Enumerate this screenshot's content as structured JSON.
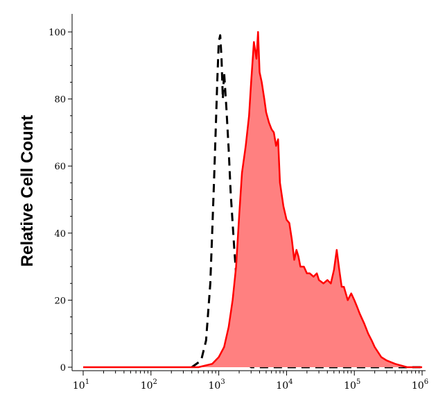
{
  "chart_data": {
    "type": "area",
    "title": "",
    "xlabel": "",
    "ylabel": "Relative Cell Count",
    "x_scale": "log",
    "xlim": [
      10,
      1000000
    ],
    "ylim": [
      0,
      100
    ],
    "y_ticks": [
      0,
      20,
      40,
      60,
      80,
      100
    ],
    "x_tick_labels": [
      {
        "base": "10",
        "exp": "1"
      },
      {
        "base": "10",
        "exp": "2"
      },
      {
        "base": "10",
        "exp": "3"
      },
      {
        "base": "10",
        "exp": "4"
      },
      {
        "base": "10",
        "exp": "5"
      },
      {
        "base": "10",
        "exp": "6"
      }
    ],
    "grid": false,
    "legend": "none",
    "series": [
      {
        "style": "dashed",
        "color": "#000000",
        "x": [
          400,
          550,
          650,
          750,
          800,
          850,
          900,
          950,
          1000,
          1050,
          1100,
          1150,
          1200,
          1300,
          1400,
          1500,
          1600,
          1700,
          1800,
          1900,
          2000,
          2100,
          2200,
          2400,
          2600,
          3000,
          3500,
          1000000
        ],
        "values": [
          0,
          2,
          8,
          25,
          40,
          55,
          70,
          85,
          97,
          99,
          92,
          80,
          88,
          77,
          65,
          52,
          43,
          35,
          28,
          21,
          14,
          10,
          6,
          2,
          1,
          0,
          0,
          0
        ]
      },
      {
        "style": "filled",
        "color": "#ff0000",
        "fill": "#ff8080",
        "x": [
          10,
          100,
          500,
          800,
          1000,
          1200,
          1400,
          1600,
          1800,
          2000,
          2200,
          2500,
          2800,
          3000,
          3300,
          3600,
          3800,
          4000,
          4300,
          4700,
          5000,
          5500,
          6000,
          6500,
          7000,
          7500,
          8000,
          9000,
          10000,
          11000,
          12000,
          13000,
          14000,
          15000,
          16000,
          18000,
          20000,
          22000,
          25000,
          28000,
          30000,
          35000,
          40000,
          45000,
          50000,
          55000,
          60000,
          65000,
          70000,
          80000,
          90000,
          100000,
          110000,
          120000,
          140000,
          160000,
          180000,
          200000,
          250000,
          300000,
          400000,
          600000,
          1000000
        ],
        "values": [
          0,
          0,
          0,
          1,
          3,
          6,
          12,
          20,
          30,
          45,
          58,
          66,
          75,
          85,
          97,
          92,
          100,
          88,
          85,
          80,
          76,
          73,
          71,
          70,
          66,
          68,
          55,
          48,
          44,
          43,
          38,
          32,
          35,
          33,
          30,
          30,
          28,
          28,
          27,
          28,
          26,
          25,
          26,
          25,
          29,
          35,
          29,
          24,
          24,
          20,
          22,
          20,
          18,
          16,
          13,
          10,
          8,
          6,
          3,
          2,
          1,
          0,
          0
        ]
      }
    ]
  }
}
